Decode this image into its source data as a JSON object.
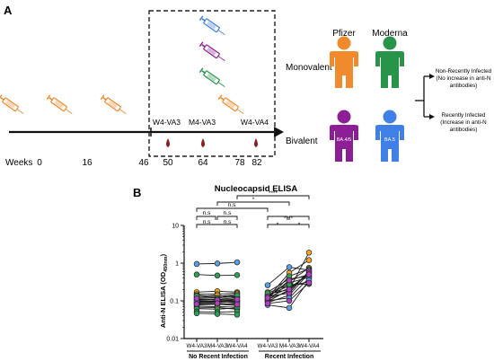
{
  "panel_a": {
    "panel_label": "A",
    "weeks_label": "Weeks",
    "week_ticks": [
      "0",
      "16",
      "46",
      "50",
      "64",
      "78",
      "82"
    ],
    "visit_labels": [
      "W4-VA3",
      "M4-VA3",
      "W4-VA4"
    ],
    "vaccine_headers": [
      "Pfizer",
      "Moderna"
    ],
    "row_labels": [
      "Monovalent",
      "Bivalent"
    ],
    "bivalent_person_text": [
      "BA.4/5",
      "BA.5"
    ],
    "outcomes": [
      {
        "lines": [
          "Non-Recently Infected",
          "(No increase in anti-N",
          "antibodies)"
        ]
      },
      {
        "lines": [
          "Recently Infected",
          "(Increase in anti-N",
          "antibodies)"
        ]
      }
    ],
    "colors": {
      "pfizer": "#f08a2c",
      "moderna": "#27944a",
      "pfizer_bivalent": "#8d1f96",
      "moderna_bivalent": "#3f7fe6",
      "blood": "#8b1f1f"
    },
    "syringe_colors": [
      "#f08a2c",
      "#f08a2c",
      "#f08a2c",
      "#f08a2c",
      "#3f7fe6",
      "#8d1f96",
      "#27944a"
    ]
  },
  "panel_b": {
    "panel_label": "B",
    "significance": {
      "left_top": [
        "n.s",
        "n.s"
      ],
      "left_bottom": [
        "n.s",
        "n.s"
      ],
      "span_mid": "n.s",
      "span_star1": "*",
      "span_star4": "****",
      "right_top": "****",
      "right_bottom": [
        "*",
        "*"
      ]
    }
  },
  "chart_data": {
    "type": "line",
    "title": "Nucleocapsid ELISA",
    "ylabel": "Anti-N ELISA (OD",
    "ylabel_sub": "450nm",
    "ylabel_close": ")",
    "yscale": "log",
    "ylim": [
      0.01,
      10
    ],
    "yticks": [
      "0.01",
      "0.1",
      "1",
      "10"
    ],
    "categories": [
      "W4-VA3",
      "M4-VA3",
      "W4-VA4",
      "W4-VA3",
      "M4-VA3",
      "W4-VA4"
    ],
    "groups": [
      "No Recent Infection",
      "Recent Infection"
    ],
    "grid": false,
    "marker_colors": {
      "pfizer": "#f5a623",
      "moderna": "#2f9e58",
      "pfizer_bivalent": "#b13fc0",
      "moderna_bivalent": "#5aa0e6"
    },
    "no_recent_infection": [
      {
        "color": "pfizer",
        "values": [
          0.17,
          0.18,
          0.17
        ]
      },
      {
        "color": "pfizer",
        "values": [
          0.15,
          0.15,
          0.16
        ]
      },
      {
        "color": "pfizer",
        "values": [
          0.14,
          0.13,
          0.15
        ]
      },
      {
        "color": "pfizer",
        "values": [
          0.13,
          0.14,
          0.12
        ]
      },
      {
        "color": "pfizer",
        "values": [
          0.12,
          0.12,
          0.13
        ]
      },
      {
        "color": "pfizer",
        "values": [
          0.11,
          0.11,
          0.12
        ]
      },
      {
        "color": "pfizer",
        "values": [
          0.1,
          0.1,
          0.1
        ]
      },
      {
        "color": "pfizer",
        "values": [
          0.092,
          0.096,
          0.09
        ]
      },
      {
        "color": "pfizer",
        "values": [
          0.085,
          0.08,
          0.086
        ]
      },
      {
        "color": "pfizer",
        "values": [
          0.078,
          0.082,
          0.075
        ]
      },
      {
        "color": "pfizer",
        "values": [
          0.072,
          0.07,
          0.068
        ]
      },
      {
        "color": "pfizer",
        "values": [
          0.065,
          0.066,
          0.06
        ]
      },
      {
        "color": "moderna",
        "values": [
          0.5,
          0.47,
          0.48
        ]
      },
      {
        "color": "moderna",
        "values": [
          0.135,
          0.12,
          0.14
        ]
      },
      {
        "color": "moderna",
        "values": [
          0.105,
          0.11,
          0.1
        ]
      },
      {
        "color": "moderna",
        "values": [
          0.088,
          0.092,
          0.094
        ]
      },
      {
        "color": "moderna",
        "values": [
          0.062,
          0.06,
          0.065
        ]
      },
      {
        "color": "moderna",
        "values": [
          0.052,
          0.05,
          0.052
        ]
      },
      {
        "color": "moderna",
        "values": [
          0.047,
          0.045,
          0.043
        ]
      },
      {
        "color": "moderna_bivalent",
        "values": [
          0.95,
          0.98,
          1.05
        ]
      },
      {
        "color": "moderna_bivalent",
        "values": [
          0.095,
          0.1,
          0.097
        ]
      },
      {
        "color": "pfizer_bivalent",
        "values": [
          0.115,
          0.105,
          0.11
        ]
      },
      {
        "color": "pfizer_bivalent",
        "values": [
          0.082,
          0.086,
          0.08
        ]
      }
    ],
    "recent_infection": [
      {
        "color": "pfizer",
        "values": [
          0.15,
          0.2,
          1.9
        ]
      },
      {
        "color": "pfizer",
        "values": [
          0.12,
          0.55,
          1.2
        ]
      },
      {
        "color": "pfizer",
        "values": [
          0.13,
          0.32,
          0.75
        ]
      },
      {
        "color": "pfizer",
        "values": [
          0.11,
          0.18,
          0.6
        ]
      },
      {
        "color": "pfizer",
        "values": [
          0.17,
          0.38,
          0.45
        ]
      },
      {
        "color": "pfizer",
        "values": [
          0.09,
          0.14,
          0.55
        ]
      },
      {
        "color": "pfizer",
        "values": [
          0.14,
          0.25,
          0.32
        ]
      },
      {
        "color": "pfizer",
        "values": [
          0.1,
          0.3,
          0.42
        ]
      },
      {
        "color": "moderna",
        "values": [
          0.12,
          0.22,
          0.5
        ]
      },
      {
        "color": "moderna",
        "values": [
          0.16,
          0.27,
          0.28
        ]
      },
      {
        "color": "moderna",
        "values": [
          0.11,
          0.45,
          0.7
        ]
      },
      {
        "color": "moderna_bivalent",
        "values": [
          0.26,
          0.78,
          0.65
        ]
      },
      {
        "color": "moderna_bivalent",
        "values": [
          0.1,
          0.12,
          0.4
        ]
      },
      {
        "color": "moderna_bivalent",
        "values": [
          0.078,
          0.065,
          0.35
        ]
      },
      {
        "color": "pfizer_bivalent",
        "values": [
          0.13,
          0.16,
          0.62
        ]
      },
      {
        "color": "pfizer_bivalent",
        "values": [
          0.095,
          0.2,
          0.55
        ]
      },
      {
        "color": "pfizer_bivalent",
        "values": [
          0.12,
          0.35,
          0.5
        ]
      },
      {
        "color": "pfizer_bivalent",
        "values": [
          0.085,
          0.1,
          0.3
        ]
      }
    ]
  }
}
